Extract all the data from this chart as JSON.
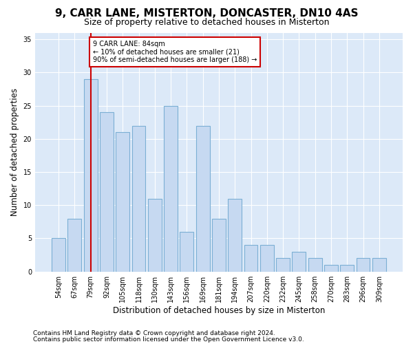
{
  "title": "9, CARR LANE, MISTERTON, DONCASTER, DN10 4AS",
  "subtitle": "Size of property relative to detached houses in Misterton",
  "xlabel": "Distribution of detached houses by size in Misterton",
  "ylabel": "Number of detached properties",
  "categories": [
    "54sqm",
    "67sqm",
    "79sqm",
    "92sqm",
    "105sqm",
    "118sqm",
    "130sqm",
    "143sqm",
    "156sqm",
    "169sqm",
    "181sqm",
    "194sqm",
    "207sqm",
    "220sqm",
    "232sqm",
    "245sqm",
    "258sqm",
    "270sqm",
    "283sqm",
    "296sqm",
    "309sqm"
  ],
  "values": [
    5,
    8,
    29,
    24,
    21,
    22,
    11,
    25,
    6,
    22,
    8,
    11,
    4,
    4,
    2,
    3,
    2,
    1,
    1,
    2,
    2
  ],
  "bar_color": "#c6d9f1",
  "bar_edge_color": "#7bafd4",
  "property_index": 2,
  "property_line_color": "#cc0000",
  "annotation_text": "9 CARR LANE: 84sqm\n← 10% of detached houses are smaller (21)\n90% of semi-detached houses are larger (188) →",
  "annotation_box_color": "#ffffff",
  "annotation_box_edge_color": "#cc0000",
  "ylim": [
    0,
    36
  ],
  "yticks": [
    0,
    5,
    10,
    15,
    20,
    25,
    30,
    35
  ],
  "footer1": "Contains HM Land Registry data © Crown copyright and database right 2024.",
  "footer2": "Contains public sector information licensed under the Open Government Licence v3.0.",
  "background_color": "#dce9f8",
  "grid_color": "#ffffff",
  "title_fontsize": 11,
  "subtitle_fontsize": 9,
  "tick_fontsize": 7,
  "ylabel_fontsize": 8.5,
  "xlabel_fontsize": 8.5,
  "footer_fontsize": 6.5,
  "bar_width": 0.85
}
